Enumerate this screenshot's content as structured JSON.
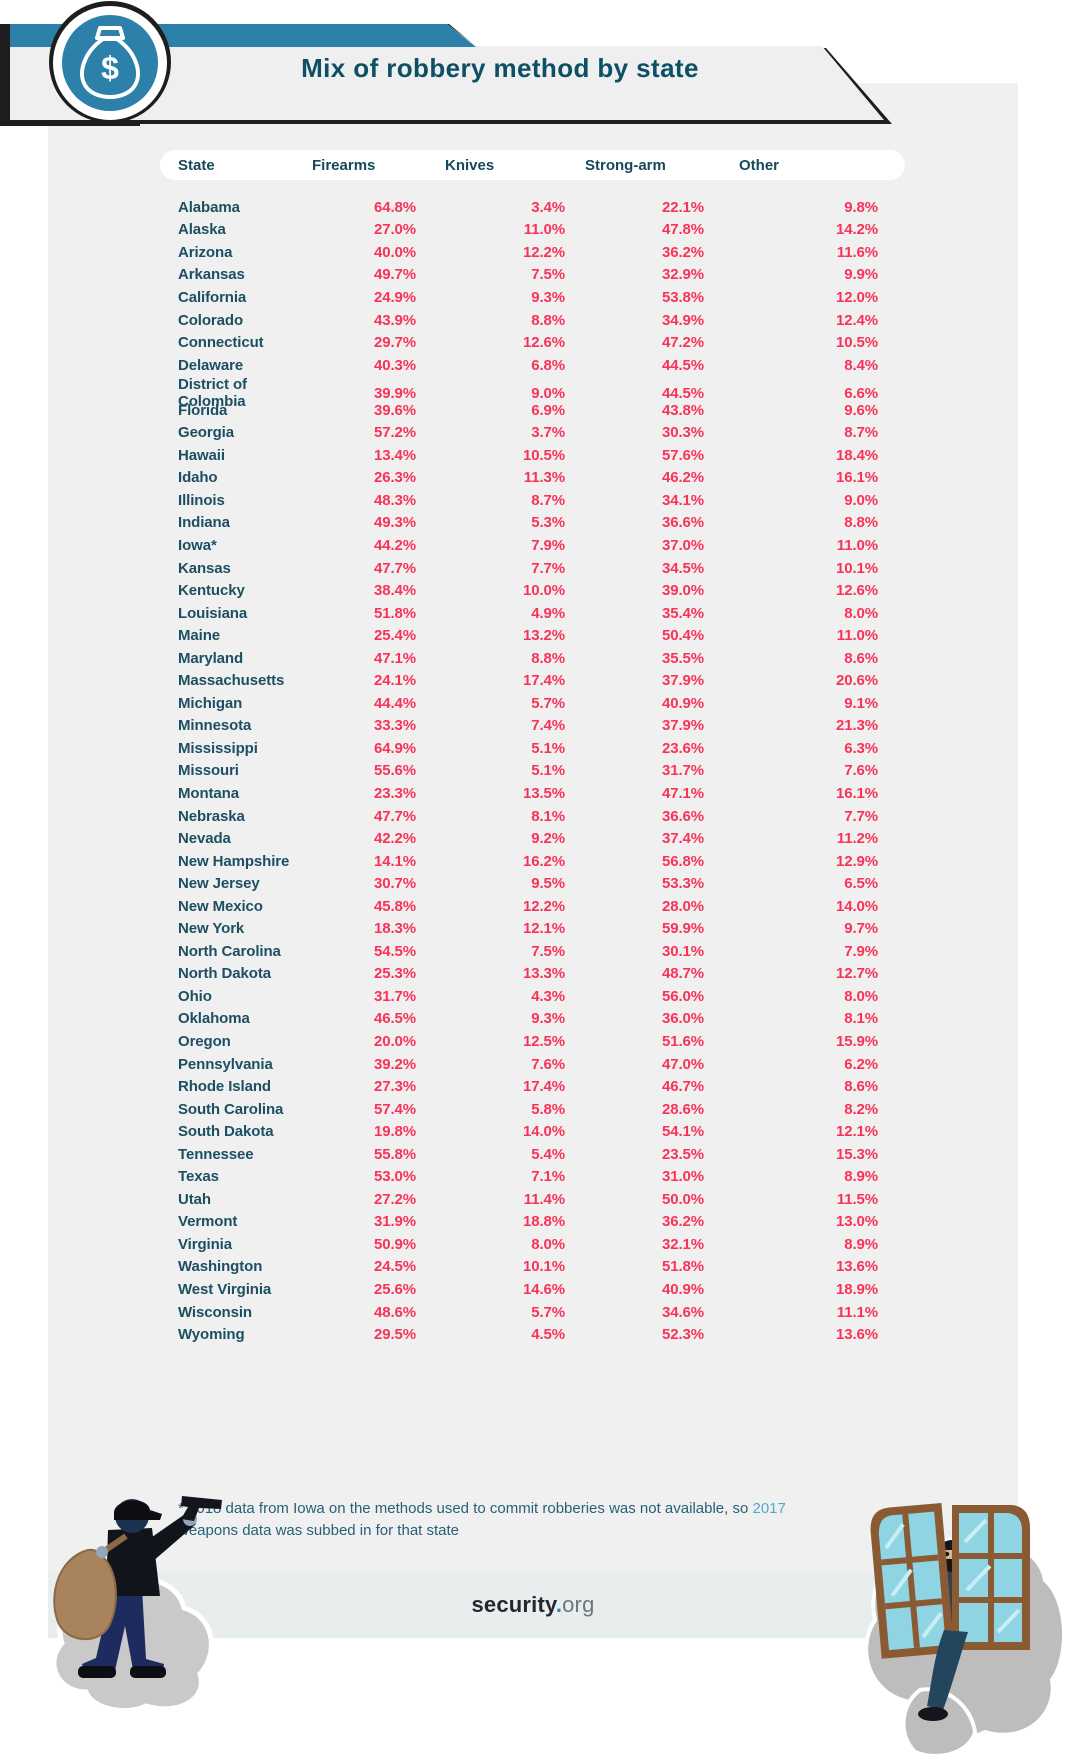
{
  "header": {
    "title": "Mix of robbery method by state",
    "icon": "money-bag-icon",
    "accent_blue": "#2d80a9",
    "title_color": "#0d5066"
  },
  "table": {
    "value_color": "#f93358",
    "state_color": "#1d4f63",
    "header_color": "#17485c"
  },
  "footnote": {
    "pre": "* 2018 data from Iowa on the methods used to commit robberies was not available, so ",
    "year": "2017",
    "post": " weapons data was subbed in for that state",
    "year_color": "#58a6c6",
    "text_color": "#276078"
  },
  "footer": {
    "brand_bold": "security",
    "brand_dot": ".",
    "brand_light": "org",
    "band_color": "#e8edee"
  },
  "colors": {
    "card_background": "#f0f0f0",
    "footer_band": "#e8edee",
    "accent_blue": "#2d80a9",
    "value_pink": "#f93358",
    "teal_text": "#1d4f63"
  },
  "chart_data": {
    "type": "table",
    "title": "Mix of robbery method by state",
    "units": "percent",
    "columns": [
      "State",
      "Firearms",
      "Knives",
      "Strong-arm",
      "Other"
    ],
    "categories": [
      "Alabama",
      "Alaska",
      "Arizona",
      "Arkansas",
      "California",
      "Colorado",
      "Connecticut",
      "Delaware",
      "District of Colombia",
      "Florida",
      "Georgia",
      "Hawaii",
      "Idaho",
      "Illinois",
      "Indiana",
      "Iowa*",
      "Kansas",
      "Kentucky",
      "Louisiana",
      "Maine",
      "Maryland",
      "Massachusetts",
      "Michigan",
      "Minnesota",
      "Mississippi",
      "Missouri",
      "Montana",
      "Nebraska",
      "Nevada",
      "New Hampshire",
      "New Jersey",
      "New Mexico",
      "New York",
      "North Carolina",
      "North Dakota",
      "Ohio",
      "Oklahoma",
      "Oregon",
      "Pennsylvania",
      "Rhode Island",
      "South Carolina",
      "South Dakota",
      "Tennessee",
      "Texas",
      "Utah",
      "Vermont",
      "Virginia",
      "Washington",
      "West Virginia",
      "Wisconsin",
      "Wyoming"
    ],
    "series": [
      {
        "name": "Firearms",
        "values": [
          64.8,
          27.0,
          40.0,
          49.7,
          24.9,
          43.9,
          29.7,
          40.3,
          39.9,
          39.6,
          57.2,
          13.4,
          26.3,
          48.3,
          49.3,
          44.2,
          47.7,
          38.4,
          51.8,
          25.4,
          47.1,
          24.1,
          44.4,
          33.3,
          64.9,
          55.6,
          23.3,
          47.7,
          42.2,
          14.1,
          30.7,
          45.8,
          18.3,
          54.5,
          25.3,
          31.7,
          46.5,
          20.0,
          39.2,
          27.3,
          57.4,
          19.8,
          55.8,
          53.0,
          27.2,
          31.9,
          50.9,
          24.5,
          25.6,
          48.6,
          29.5
        ]
      },
      {
        "name": "Knives",
        "values": [
          3.4,
          11.0,
          12.2,
          7.5,
          9.3,
          8.8,
          12.6,
          6.8,
          9.0,
          6.9,
          3.7,
          10.5,
          11.3,
          8.7,
          5.3,
          7.9,
          7.7,
          10.0,
          4.9,
          13.2,
          8.8,
          17.4,
          5.7,
          7.4,
          5.1,
          5.1,
          13.5,
          8.1,
          9.2,
          16.2,
          9.5,
          12.2,
          12.1,
          7.5,
          13.3,
          4.3,
          9.3,
          12.5,
          7.6,
          17.4,
          5.8,
          14.0,
          5.4,
          7.1,
          11.4,
          18.8,
          8.0,
          10.1,
          14.6,
          5.7,
          4.5
        ]
      },
      {
        "name": "Strong-arm",
        "values": [
          22.1,
          47.8,
          36.2,
          32.9,
          53.8,
          34.9,
          47.2,
          44.5,
          44.5,
          43.8,
          30.3,
          57.6,
          46.2,
          34.1,
          36.6,
          37.0,
          34.5,
          39.0,
          35.4,
          50.4,
          35.5,
          37.9,
          40.9,
          37.9,
          23.6,
          31.7,
          47.1,
          36.6,
          37.4,
          56.8,
          53.3,
          28.0,
          59.9,
          30.1,
          48.7,
          56.0,
          36.0,
          51.6,
          47.0,
          46.7,
          28.6,
          54.1,
          23.5,
          31.0,
          50.0,
          36.2,
          32.1,
          51.8,
          40.9,
          34.6,
          52.3
        ]
      },
      {
        "name": "Other",
        "values": [
          9.8,
          14.2,
          11.6,
          9.9,
          12.0,
          12.4,
          10.5,
          8.4,
          6.6,
          9.6,
          8.7,
          18.4,
          16.1,
          9.0,
          8.8,
          11.0,
          10.1,
          12.6,
          8.0,
          11.0,
          8.6,
          20.6,
          9.1,
          21.3,
          6.3,
          7.6,
          16.1,
          7.7,
          11.2,
          12.9,
          6.5,
          14.0,
          9.7,
          7.9,
          12.7,
          8.0,
          8.1,
          15.9,
          6.2,
          8.6,
          8.2,
          12.1,
          15.3,
          8.9,
          11.5,
          13.0,
          8.9,
          13.6,
          18.9,
          11.1,
          13.6
        ]
      }
    ],
    "footnote": "* 2018 data from Iowa on the methods used to commit robberies was not available, so 2017 weapons data was subbed in for that state",
    "source": "security.org"
  }
}
